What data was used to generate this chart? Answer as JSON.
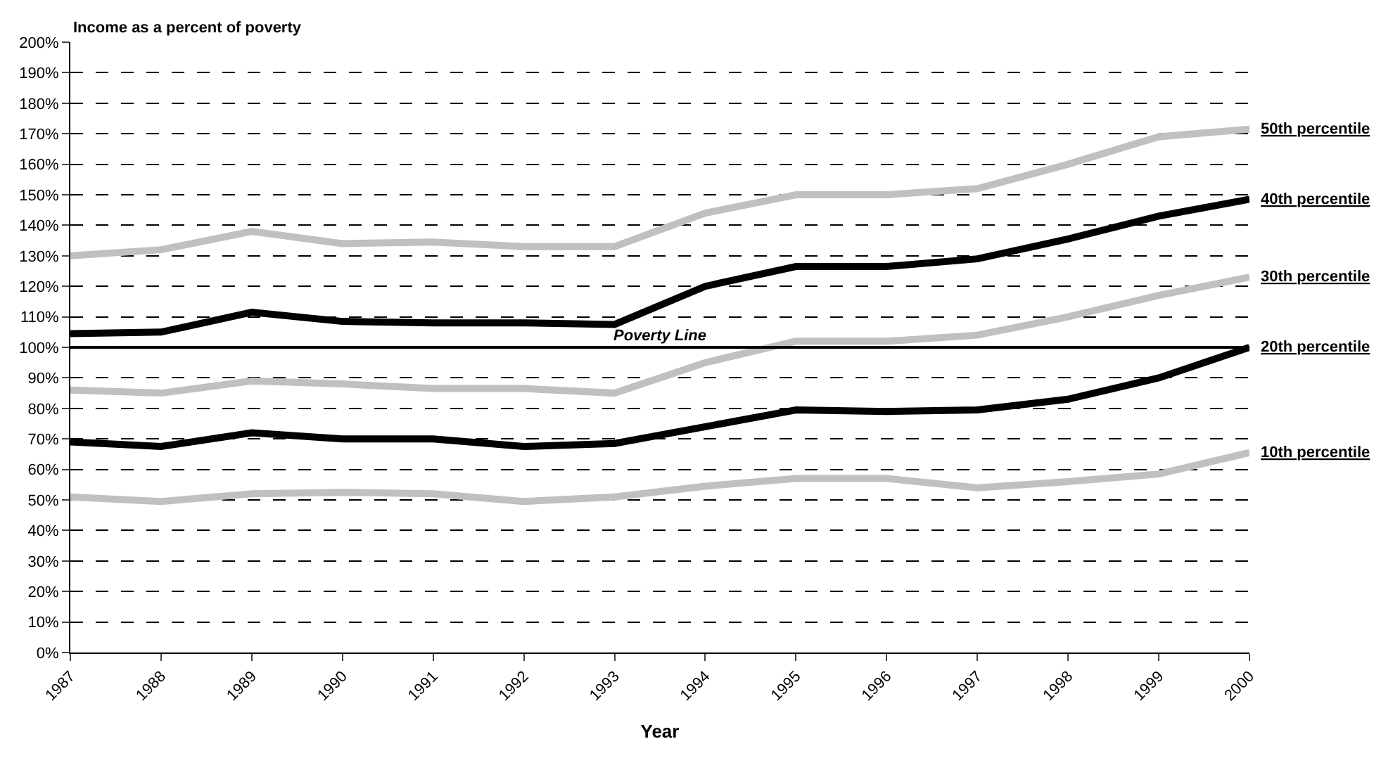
{
  "chart_data": {
    "type": "line",
    "ylabel": "Income as a percent of poverty",
    "xlabel": "Year",
    "categories": [
      "1987",
      "1988",
      "1989",
      "1990",
      "1991",
      "1992",
      "1993",
      "1994",
      "1995",
      "1996",
      "1997",
      "1998",
      "1999",
      "2000"
    ],
    "series": [
      {
        "name": "50th percentile",
        "color": "#c0c0c0",
        "values": [
          130,
          132,
          138,
          134,
          134.5,
          133,
          133,
          144,
          150,
          150,
          152,
          160,
          169,
          171.5
        ]
      },
      {
        "name": "40th percentile",
        "color": "#000000",
        "values": [
          104.5,
          105,
          111.5,
          108.5,
          108,
          108,
          107.5,
          120,
          126.5,
          126.5,
          129,
          135.5,
          143,
          148.5
        ]
      },
      {
        "name": "30th percentile",
        "color": "#c0c0c0",
        "values": [
          86,
          85,
          89,
          88,
          86.5,
          86.5,
          85,
          95,
          102,
          102,
          104,
          110,
          117,
          123
        ]
      },
      {
        "name": "20th percentile",
        "color": "#000000",
        "values": [
          69,
          67.5,
          72,
          70,
          70,
          67.5,
          68.5,
          74,
          79.5,
          79,
          79.5,
          83,
          90,
          100
        ]
      },
      {
        "name": "10th percentile",
        "color": "#c0c0c0",
        "values": [
          51,
          49.5,
          52,
          52.5,
          52,
          49.5,
          51,
          54.5,
          57,
          57,
          54,
          56,
          58.5,
          65.5
        ]
      }
    ],
    "ylim": [
      0,
      200
    ],
    "yticks": [
      {
        "value": 0,
        "label": "0%"
      },
      {
        "value": 10,
        "label": "10%"
      },
      {
        "value": 20,
        "label": "20%"
      },
      {
        "value": 30,
        "label": "30%"
      },
      {
        "value": 40,
        "label": "40%"
      },
      {
        "value": 50,
        "label": "50%"
      },
      {
        "value": 60,
        "label": "60%"
      },
      {
        "value": 70,
        "label": "70%"
      },
      {
        "value": 80,
        "label": "80%"
      },
      {
        "value": 90,
        "label": "90%"
      },
      {
        "value": 100,
        "label": "100%"
      },
      {
        "value": 110,
        "label": "110%"
      },
      {
        "value": 120,
        "label": "120%"
      },
      {
        "value": 130,
        "label": "130%"
      },
      {
        "value": 140,
        "label": "140%"
      },
      {
        "value": 150,
        "label": "150%"
      },
      {
        "value": 160,
        "label": "160%"
      },
      {
        "value": 170,
        "label": "170%"
      },
      {
        "value": 180,
        "label": "180%"
      },
      {
        "value": 190,
        "label": "190%"
      },
      {
        "value": 200,
        "label": "200%"
      }
    ],
    "ref_lines": [
      {
        "axis": "y",
        "value": 100,
        "label": "Poverty Line",
        "color": "#000000",
        "line_style": "solid"
      }
    ],
    "grid": "y",
    "legend": false,
    "marker": "none",
    "line_style": "solid"
  }
}
